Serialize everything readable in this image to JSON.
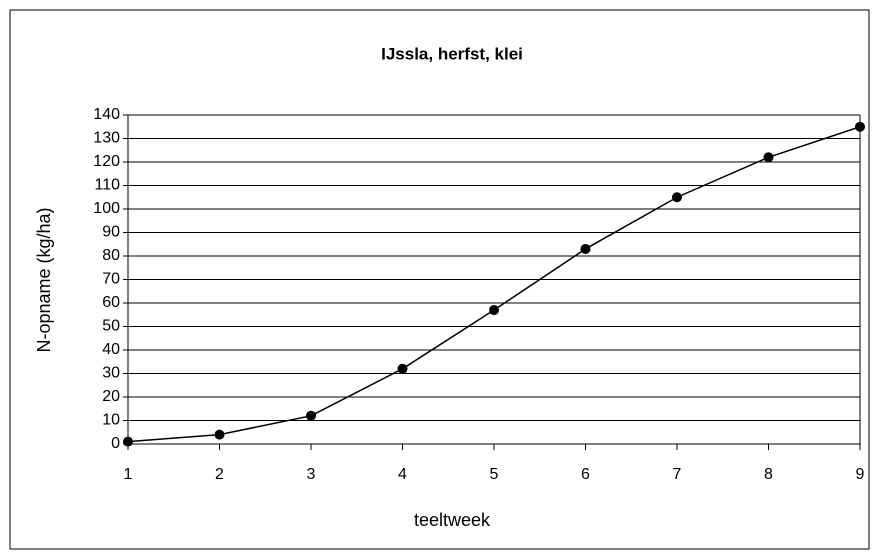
{
  "chart_data": {
    "type": "line",
    "title": "IJssla, herfst, klei",
    "x_label": "teeltweek",
    "y_label": "N-opname (kg/ha)",
    "x": [
      1,
      2,
      3,
      4,
      5,
      6,
      7,
      8,
      9
    ],
    "series": [
      {
        "name": "N-opname",
        "color": "#000000",
        "values": [
          1,
          4,
          12,
          32,
          57,
          83,
          105,
          122,
          135
        ]
      }
    ],
    "xlim": [
      1,
      9
    ],
    "xticks": [
      1,
      2,
      3,
      4,
      5,
      6,
      7,
      8,
      9
    ],
    "ylim": [
      0,
      140
    ],
    "yticks": [
      0,
      10,
      20,
      30,
      40,
      50,
      60,
      70,
      80,
      90,
      100,
      110,
      120,
      130,
      140
    ],
    "grid": true
  }
}
